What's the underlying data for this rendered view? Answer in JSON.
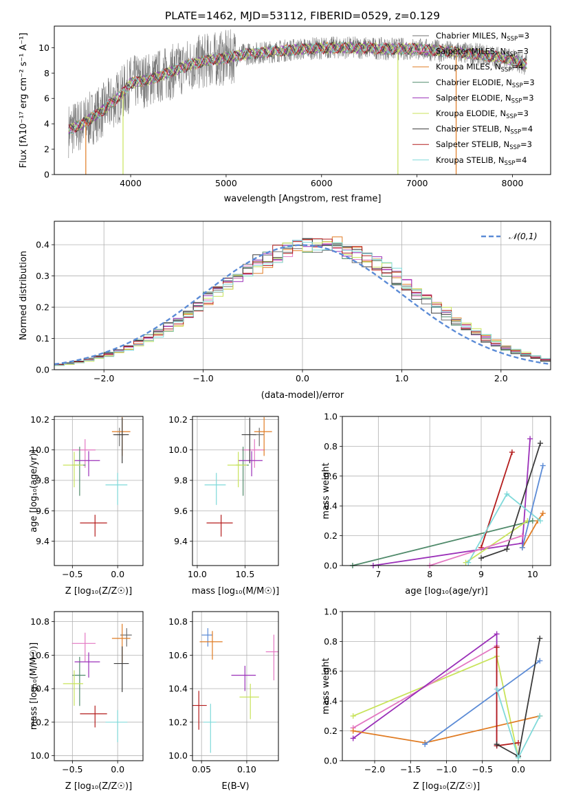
{
  "colors": {
    "chabrier_miles": "#6f6f6f",
    "salpeter_miles": "#e377c2",
    "kroupa_miles": "#e07b22",
    "chabrier_elodie": "#4f8a6a",
    "salpeter_elodie": "#9a2fb8",
    "kroupa_elodie": "#c8e35a",
    "chabrier_stelib": "#3a3a3a",
    "salpeter_stelib": "#b31b1b",
    "kroupa_stelib": "#7fd9d9",
    "gauss": "#5b8bd6",
    "blue_point": "#5b8bd6"
  },
  "chart_data": [
    {
      "type": "line",
      "title": "PLATE=1462, MJD=53112, FIBERID=0529, z=0.129",
      "xlabel": "wavelength [Angstrom, rest frame]",
      "ylabel": "Flux [f_λ 10^-17 erg cm^-2 s^-1 A^-1]",
      "xlim": [
        3200,
        8400
      ],
      "ylim": [
        0,
        11.7
      ],
      "xticks": [
        4000,
        5000,
        6000,
        7000,
        8000
      ],
      "yticks": [
        0,
        2,
        4,
        6,
        8,
        10
      ],
      "grid": false,
      "legend_position": "right",
      "series": [
        {
          "name": "Chabrier MILES, N_SSP=3"
        },
        {
          "name": "Salpeter MILES, N_SSP=3"
        },
        {
          "name": "Kroupa MILES, N_SSP=4"
        },
        {
          "name": "Chabrier ELODIE, N_SSP=3"
        },
        {
          "name": "Salpeter ELODIE, N_SSP=3"
        },
        {
          "name": "Kroupa ELODIE, N_SSP=3"
        },
        {
          "name": "Chabrier STELIB, N_SSP=4"
        },
        {
          "name": "Salpeter STELIB, N_SSP=3"
        },
        {
          "name": "Kroupa STELIB, N_SSP=4"
        }
      ],
      "continuum_x": [
        3350,
        3500,
        3700,
        3900,
        4000,
        4200,
        4400,
        4600,
        4800,
        5000,
        5200,
        5500,
        5800,
        6100,
        6400,
        6700,
        7000,
        7300,
        7600,
        7900,
        8150
      ],
      "continuum_y": [
        3.5,
        4.0,
        5.0,
        6.3,
        7.2,
        7.5,
        8.0,
        8.6,
        9.0,
        9.2,
        9.5,
        9.7,
        9.9,
        10.0,
        10.0,
        9.9,
        9.9,
        9.7,
        9.5,
        9.2,
        8.7
      ]
    },
    {
      "type": "bar",
      "xlabel": "(data-model)/error",
      "ylabel": "Normed distribution",
      "xlim": [
        -2.5,
        2.5
      ],
      "ylim": [
        0,
        0.475
      ],
      "xticks": [
        -2,
        -1,
        0,
        1,
        2
      ],
      "yticks": [
        0.0,
        0.1,
        0.2,
        0.3,
        0.4
      ],
      "grid": true,
      "legend": "𝒩(0,1)",
      "legend_position": "upper right"
    },
    {
      "type": "scatter",
      "xlabel": "Z [log₁₀(Z/Z☉)]",
      "ylabel": "age [log₁₀(age/yr)]",
      "xlim": [
        -0.7,
        0.28
      ],
      "ylim": [
        9.24,
        10.22
      ],
      "xticks": [
        -0.5,
        0.0
      ],
      "yticks": [
        9.4,
        9.6,
        9.8,
        10.0,
        10.2
      ],
      "grid": true,
      "points": [
        {
          "series": "chabrier_miles",
          "x": 0.02,
          "y": 10.1
        },
        {
          "series": "salpeter_miles",
          "x": -0.36,
          "y": 10.0
        },
        {
          "series": "kroupa_miles",
          "x": 0.05,
          "y": 10.12
        },
        {
          "series": "chabrier_elodie",
          "x": -0.42,
          "y": 9.9
        },
        {
          "series": "salpeter_elodie",
          "x": -0.32,
          "y": 9.93
        },
        {
          "series": "kroupa_elodie",
          "x": -0.48,
          "y": 9.9
        },
        {
          "series": "chabrier_stelib",
          "x": 0.05,
          "y": 10.1
        },
        {
          "series": "salpeter_stelib",
          "x": -0.25,
          "y": 9.52
        },
        {
          "series": "kroupa_stelib",
          "x": 0.0,
          "y": 9.77
        }
      ]
    },
    {
      "type": "scatter",
      "xlabel": "mass [log₁₀(M/M☉)]",
      "xlim": [
        9.95,
        10.85
      ],
      "ylim": [
        9.24,
        10.22
      ],
      "xticks": [
        10.0,
        10.5
      ],
      "yticks": [
        9.4,
        9.6,
        9.8,
        10.0,
        10.2
      ],
      "grid": true,
      "points": [
        {
          "series": "chabrier_miles",
          "x": 10.65,
          "y": 10.1
        },
        {
          "series": "salpeter_miles",
          "x": 10.6,
          "y": 10.0
        },
        {
          "series": "kroupa_miles",
          "x": 10.7,
          "y": 10.12
        },
        {
          "series": "chabrier_elodie",
          "x": 10.48,
          "y": 9.9
        },
        {
          "series": "salpeter_elodie",
          "x": 10.57,
          "y": 9.93
        },
        {
          "series": "kroupa_elodie",
          "x": 10.43,
          "y": 9.9
        },
        {
          "series": "chabrier_stelib",
          "x": 10.55,
          "y": 10.1
        },
        {
          "series": "salpeter_stelib",
          "x": 10.25,
          "y": 9.52
        },
        {
          "series": "kroupa_stelib",
          "x": 10.2,
          "y": 9.77
        }
      ]
    },
    {
      "type": "line",
      "xlabel": "age [log₁₀(age/yr)]",
      "ylabel": "mass weight",
      "xlim": [
        6.3,
        10.35
      ],
      "ylim": [
        0,
        1.0
      ],
      "xticks": [
        7,
        8,
        9,
        10
      ],
      "yticks": [
        0.0,
        0.2,
        0.4,
        0.6,
        0.8,
        1.0
      ],
      "grid": true,
      "series": [
        {
          "color": "chabrier_elodie",
          "x": [
            6.5,
            10.0
          ],
          "y": [
            0.0,
            0.3
          ]
        },
        {
          "color": "salpeter_elodie",
          "x": [
            6.9,
            9.8,
            9.95
          ],
          "y": [
            0.0,
            0.15,
            0.85
          ]
        },
        {
          "color": "kroupa_elodie",
          "x": [
            8.7,
            9.9
          ],
          "y": [
            0.02,
            0.3
          ]
        },
        {
          "color": "kroupa_miles",
          "x": [
            9.8,
            10.1,
            10.2
          ],
          "y": [
            0.12,
            0.3,
            0.35
          ]
        },
        {
          "color": "salpeter_stelib",
          "x": [
            9.0,
            9.6
          ],
          "y": [
            0.12,
            0.76
          ]
        },
        {
          "color": "chabrier_stelib",
          "x": [
            9.0,
            9.5,
            10.15
          ],
          "y": [
            0.05,
            0.11,
            0.82
          ]
        },
        {
          "color": "kroupa_stelib",
          "x": [
            8.75,
            9.5,
            10.15
          ],
          "y": [
            0.02,
            0.48,
            0.3
          ]
        },
        {
          "color": "blue_point",
          "x": [
            9.8,
            10.2
          ],
          "y": [
            0.12,
            0.67
          ]
        },
        {
          "color": "salpeter_miles",
          "x": [
            8.0,
            9.8
          ],
          "y": [
            0.0,
            0.2
          ]
        }
      ]
    },
    {
      "type": "scatter",
      "xlabel": "Z [log₁₀(Z/Z☉)]",
      "ylabel": "mass [log₁₀(M/M☉)]",
      "xlim": [
        -0.7,
        0.28
      ],
      "ylim": [
        9.97,
        10.86
      ],
      "xticks": [
        -0.5,
        0.0
      ],
      "yticks": [
        10.0,
        10.2,
        10.4,
        10.6,
        10.8
      ],
      "grid": true,
      "points": [
        {
          "series": "chabrier_miles",
          "x": 0.1,
          "y": 10.72
        },
        {
          "series": "salpeter_miles",
          "x": -0.36,
          "y": 10.67
        },
        {
          "series": "kroupa_miles",
          "x": 0.05,
          "y": 10.7
        },
        {
          "series": "chabrier_elodie",
          "x": -0.42,
          "y": 10.48
        },
        {
          "series": "salpeter_elodie",
          "x": -0.32,
          "y": 10.56
        },
        {
          "series": "kroupa_elodie",
          "x": -0.48,
          "y": 10.43
        },
        {
          "series": "chabrier_stelib",
          "x": 0.05,
          "y": 10.55
        },
        {
          "series": "salpeter_stelib",
          "x": -0.25,
          "y": 10.25
        },
        {
          "series": "kroupa_stelib",
          "x": 0.0,
          "y": 10.2
        }
      ]
    },
    {
      "type": "scatter",
      "xlabel": "E(B-V)",
      "xlim": [
        0.04,
        0.135
      ],
      "ylim": [
        9.97,
        10.86
      ],
      "xticks": [
        0.05,
        0.1
      ],
      "yticks": [
        10.0,
        10.2,
        10.4,
        10.6,
        10.8
      ],
      "grid": true,
      "points": [
        {
          "series": "blue_point",
          "x": 0.057,
          "y": 10.72
        },
        {
          "series": "kroupa_miles",
          "x": 0.062,
          "y": 10.68
        },
        {
          "series": "salpeter_stelib",
          "x": 0.047,
          "y": 10.3
        },
        {
          "series": "kroupa_stelib",
          "x": 0.06,
          "y": 10.2
        },
        {
          "series": "salpeter_elodie",
          "x": 0.098,
          "y": 10.48
        },
        {
          "series": "kroupa_elodie",
          "x": 0.104,
          "y": 10.35
        },
        {
          "series": "salpeter_miles",
          "x": 0.13,
          "y": 10.62
        }
      ]
    },
    {
      "type": "line",
      "xlabel": "Z [log₁₀(Z/Z☉)]",
      "ylabel": "mass weight",
      "xlim": [
        -2.45,
        0.45
      ],
      "ylim": [
        0,
        1.0
      ],
      "xticks": [
        -2.0,
        -1.5,
        -1.0,
        -0.5,
        0.0
      ],
      "yticks": [
        0.0,
        0.2,
        0.4,
        0.6,
        0.8,
        1.0
      ],
      "grid": true,
      "series": [
        {
          "color": "kroupa_elodie",
          "x": [
            -2.3,
            -0.3,
            0.0
          ],
          "y": [
            0.3,
            0.7,
            0.02
          ]
        },
        {
          "color": "salpeter_miles",
          "x": [
            -2.3,
            -0.3
          ],
          "y": [
            0.22,
            0.77
          ]
        },
        {
          "color": "salpeter_elodie",
          "x": [
            -2.3,
            -0.3,
            -0.3
          ],
          "y": [
            0.15,
            0.85,
            0.1
          ]
        },
        {
          "color": "kroupa_miles",
          "x": [
            -2.3,
            -1.3,
            0.3
          ],
          "y": [
            0.2,
            0.12,
            0.3
          ]
        },
        {
          "color": "blue_point",
          "x": [
            -1.3,
            0.3
          ],
          "y": [
            0.11,
            0.67
          ]
        },
        {
          "color": "salpeter_stelib",
          "x": [
            -0.3,
            -0.3,
            0.0
          ],
          "y": [
            0.76,
            0.1,
            0.12
          ]
        },
        {
          "color": "chabrier_stelib",
          "x": [
            -0.3,
            0.0,
            0.3
          ],
          "y": [
            0.11,
            0.03,
            0.82
          ]
        },
        {
          "color": "kroupa_stelib",
          "x": [
            -0.3,
            0.0,
            0.3
          ],
          "y": [
            0.48,
            0.02,
            0.3
          ]
        }
      ]
    }
  ]
}
